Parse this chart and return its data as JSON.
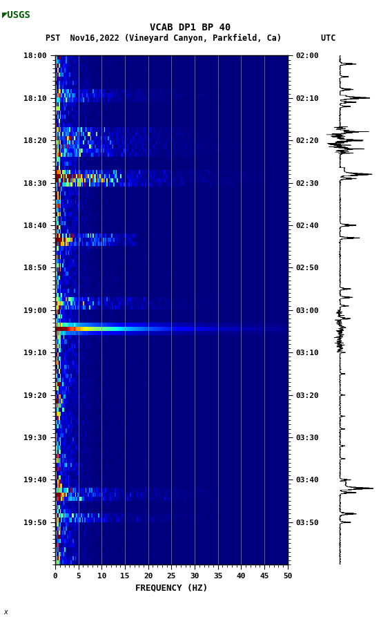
{
  "title_line1": "VCAB DP1 BP 40",
  "title_line2": "PST  Nov16,2022 (Vineyard Canyon, Parkfield, Ca)        UTC",
  "xlabel": "FREQUENCY (HZ)",
  "freq_min": 0,
  "freq_max": 50,
  "left_time_labels": [
    "18:00",
    "18:10",
    "18:20",
    "18:30",
    "18:40",
    "18:50",
    "19:00",
    "19:10",
    "19:20",
    "19:30",
    "19:40",
    "19:50"
  ],
  "right_time_labels": [
    "02:00",
    "02:10",
    "02:20",
    "02:30",
    "02:40",
    "02:50",
    "03:00",
    "03:10",
    "03:20",
    "03:30",
    "03:40",
    "03:50"
  ],
  "xticks": [
    0,
    5,
    10,
    15,
    20,
    25,
    30,
    35,
    40,
    45,
    50
  ],
  "vgrid_freqs": [
    5,
    10,
    15,
    20,
    25,
    30,
    35,
    40,
    45
  ],
  "fig_width": 5.52,
  "fig_height": 8.93,
  "background_color": "#ffffff",
  "spectrogram_cmap": "jet",
  "usgs_logo_color": "#005c00",
  "seismogram_color": "#000000",
  "noise_seed": 42
}
